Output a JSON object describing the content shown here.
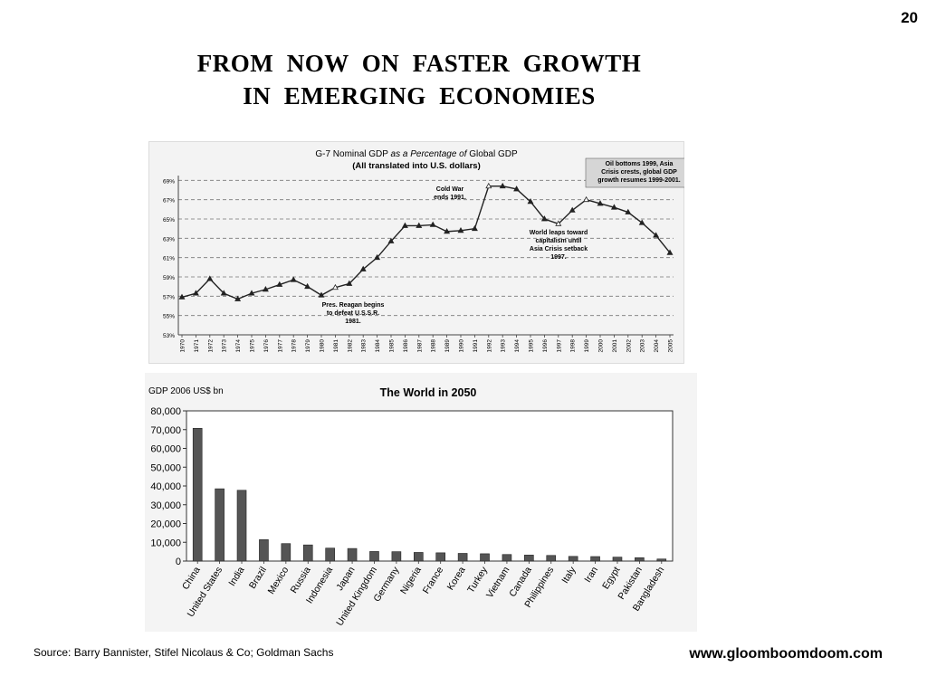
{
  "slide": {
    "number": "20",
    "title_line1": "FROM  NOW  ON  FASTER  GROWTH",
    "title_line2": "IN  EMERGING  ECONOMIES",
    "source": "Source: Barry Bannister, Stifel Nicolaus & Co; Goldman Sachs",
    "website": "www.gloomboomdoom.com"
  },
  "chart_data": [
    {
      "type": "line",
      "title_line1_a": "G-7 Nominal GDP ",
      "title_line1_b": "as a Percentage of",
      "title_line1_c": " Global GDP",
      "title_line2": "(All translated into U.S. dollars)",
      "y_tick_labels": [
        "53%",
        "55%",
        "57%",
        "59%",
        "61%",
        "63%",
        "65%",
        "67%",
        "69%"
      ],
      "ylim": [
        53,
        69.5
      ],
      "grid": "dashed horizontal",
      "x": [
        "1970",
        "1971",
        "1972",
        "1973",
        "1974",
        "1975",
        "1976",
        "1977",
        "1978",
        "1979",
        "1980",
        "1981",
        "1982",
        "1983",
        "1984",
        "1985",
        "1986",
        "1987",
        "1988",
        "1989",
        "1990",
        "1991",
        "1992",
        "1993",
        "1994",
        "1995",
        "1996",
        "1997",
        "1998",
        "1999",
        "2000",
        "2001",
        "2002",
        "2003",
        "2004",
        "2005"
      ],
      "series": [
        {
          "values": [
            56.9,
            57.3,
            58.8,
            57.3,
            56.7,
            57.3,
            57.7,
            58.2,
            58.7,
            58.0,
            57.1,
            57.9,
            58.3,
            59.8,
            61.0,
            62.7,
            64.3,
            64.3,
            64.4,
            63.7,
            63.8,
            64.0,
            68.4,
            68.4,
            68.1,
            66.8,
            65.0,
            64.5,
            65.9,
            67.0,
            66.6,
            66.2,
            65.7,
            64.6,
            63.3,
            61.5
          ],
          "color": "#222222"
        }
      ],
      "annotations": [
        {
          "lines": [
            "Oil bottoms 1999, Asia",
            "Crisis crests, global GDP",
            "growth resumes 1999-2001."
          ],
          "boxed": true
        },
        {
          "lines": [
            "Cold War",
            "ends 1991."
          ]
        },
        {
          "lines": [
            "World leaps toward",
            "capitalism until",
            "Asia Crisis setback",
            "1997."
          ]
        },
        {
          "lines": [
            "Pres. Reagan begins",
            "to defeat U.S.S.R.",
            "1981."
          ]
        }
      ]
    },
    {
      "type": "bar",
      "title": "The World in 2050",
      "unit_label": "GDP 2006 US$ bn",
      "y_tick_labels": [
        "0",
        "10,000",
        "20,000",
        "30,000",
        "40,000",
        "50,000",
        "60,000",
        "70,000",
        "80,000"
      ],
      "ylim": [
        0,
        80000
      ],
      "categories": [
        "China",
        "United States",
        "India",
        "Brazil",
        "Mexico",
        "Russia",
        "Indonesia",
        "Japan",
        "United Kingdom",
        "Germany",
        "Nigeria",
        "France",
        "Korea",
        "Turkey",
        "Vietnam",
        "Canada",
        "Philippines",
        "Italy",
        "Iran",
        "Egypt",
        "Pakistan",
        "Bangladesh"
      ],
      "values": [
        70700,
        38500,
        37700,
        11400,
        9300,
        8600,
        6900,
        6700,
        5100,
        5000,
        4600,
        4400,
        4100,
        3900,
        3500,
        3200,
        3000,
        2500,
        2400,
        2100,
        1800,
        1100
      ],
      "bar_color": "#555555",
      "grid": false
    }
  ]
}
